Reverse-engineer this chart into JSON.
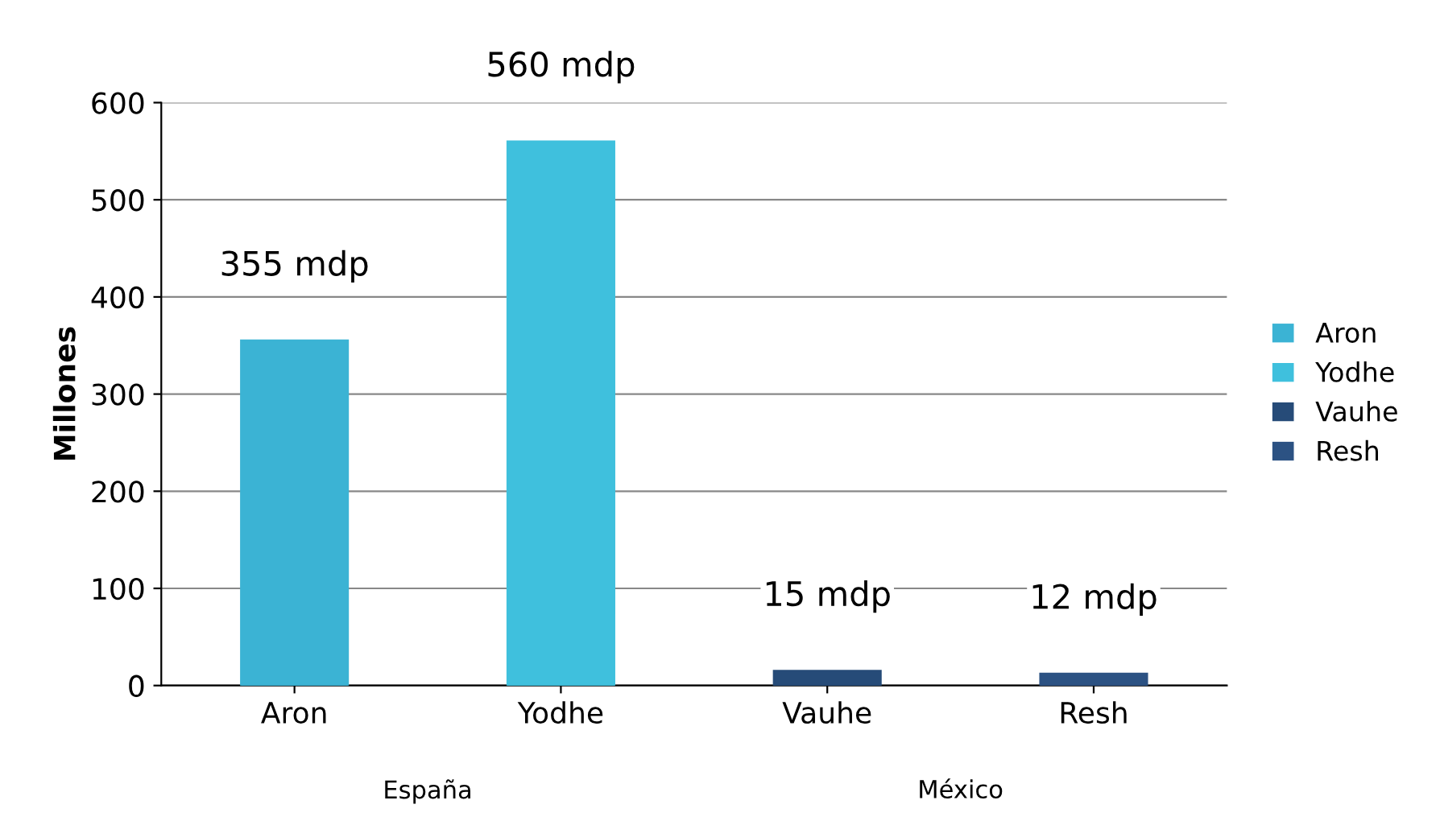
{
  "chart_data": {
    "type": "bar",
    "ylabel": "Millones",
    "categories": [
      "Aron",
      "Yodhe",
      "Vauhe",
      "Resh"
    ],
    "series": [
      {
        "name": "Aron",
        "color": "#3bb3d4",
        "values": [
          355,
          null,
          null,
          null
        ],
        "value_labels": [
          "355 mdp",
          null,
          null,
          null
        ]
      },
      {
        "name": "Yodhe",
        "color": "#3fc0dd",
        "values": [
          null,
          560,
          null,
          null
        ],
        "value_labels": [
          null,
          "560 mdp",
          null,
          null
        ]
      },
      {
        "name": "Vauhe",
        "color": "#264b78",
        "values": [
          null,
          null,
          15,
          null
        ],
        "value_labels": [
          null,
          null,
          "15 mdp",
          null
        ]
      },
      {
        "name": "Resh",
        "color": "#2c5283",
        "values": [
          null,
          null,
          null,
          12
        ],
        "value_labels": [
          null,
          null,
          null,
          "12 mdp"
        ]
      }
    ],
    "ylim": [
      0,
      600
    ],
    "yticks": [
      0,
      100,
      200,
      300,
      400,
      500,
      600
    ],
    "grid": "y",
    "legend": "right",
    "annotations": [
      "España",
      "México"
    ]
  }
}
